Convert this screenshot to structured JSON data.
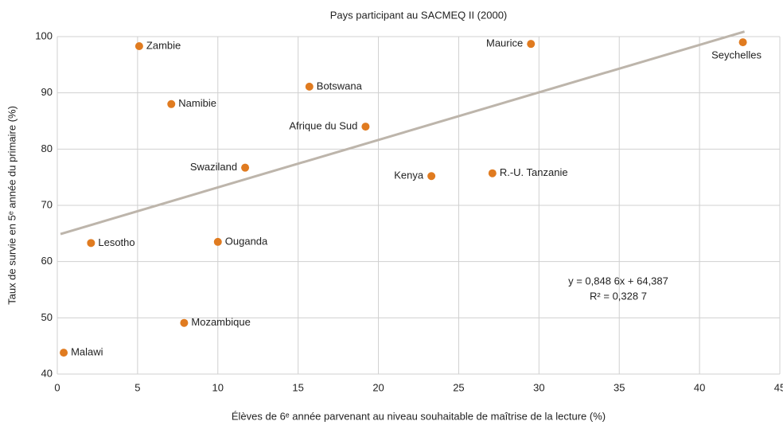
{
  "chart_data": {
    "type": "scatter",
    "title": "Pays participant au SACMEQ II (2000)",
    "x_label": "Élèves de 6ᵉ année parvenant au niveau souhaitable de maîtrise de la lecture (%)",
    "y_label": "Taux de survie en 5ᵉ année du primaire (%)",
    "point_labels": [
      "Zambie",
      "Namibie",
      "Botswana",
      "Afrique du Sud",
      "Swaziland",
      "Kenya",
      "R.-U. Tanzanie",
      "Maurice",
      "Seychelles",
      "Lesotho",
      "Ouganda",
      "Mozambique",
      "Malawi"
    ],
    "x": [
      5.1,
      7.1,
      15.7,
      19.2,
      11.7,
      23.3,
      27.1,
      29.5,
      42.7,
      2.1,
      10.0,
      7.9,
      0.4
    ],
    "values": [
      98.3,
      88.0,
      91.1,
      84.0,
      76.7,
      75.2,
      75.7,
      98.7,
      99.0,
      63.3,
      63.5,
      49.1,
      43.8
    ],
    "color": "#e07b20",
    "trendline": {
      "color": "#bdb5ab",
      "x": [
        0.2,
        42.8
      ],
      "y": [
        64.9,
        100.9
      ]
    },
    "annotation": [
      "y = 0,848 6x + 64,387",
      "R² = 0,328 7"
    ],
    "xlim": [
      0,
      45
    ],
    "xticks": [
      0,
      5,
      10,
      15,
      20,
      25,
      30,
      35,
      40,
      45
    ],
    "ylim": [
      40,
      100
    ],
    "yticks": [
      40,
      50,
      60,
      70,
      80,
      90,
      100
    ],
    "grid": true
  }
}
